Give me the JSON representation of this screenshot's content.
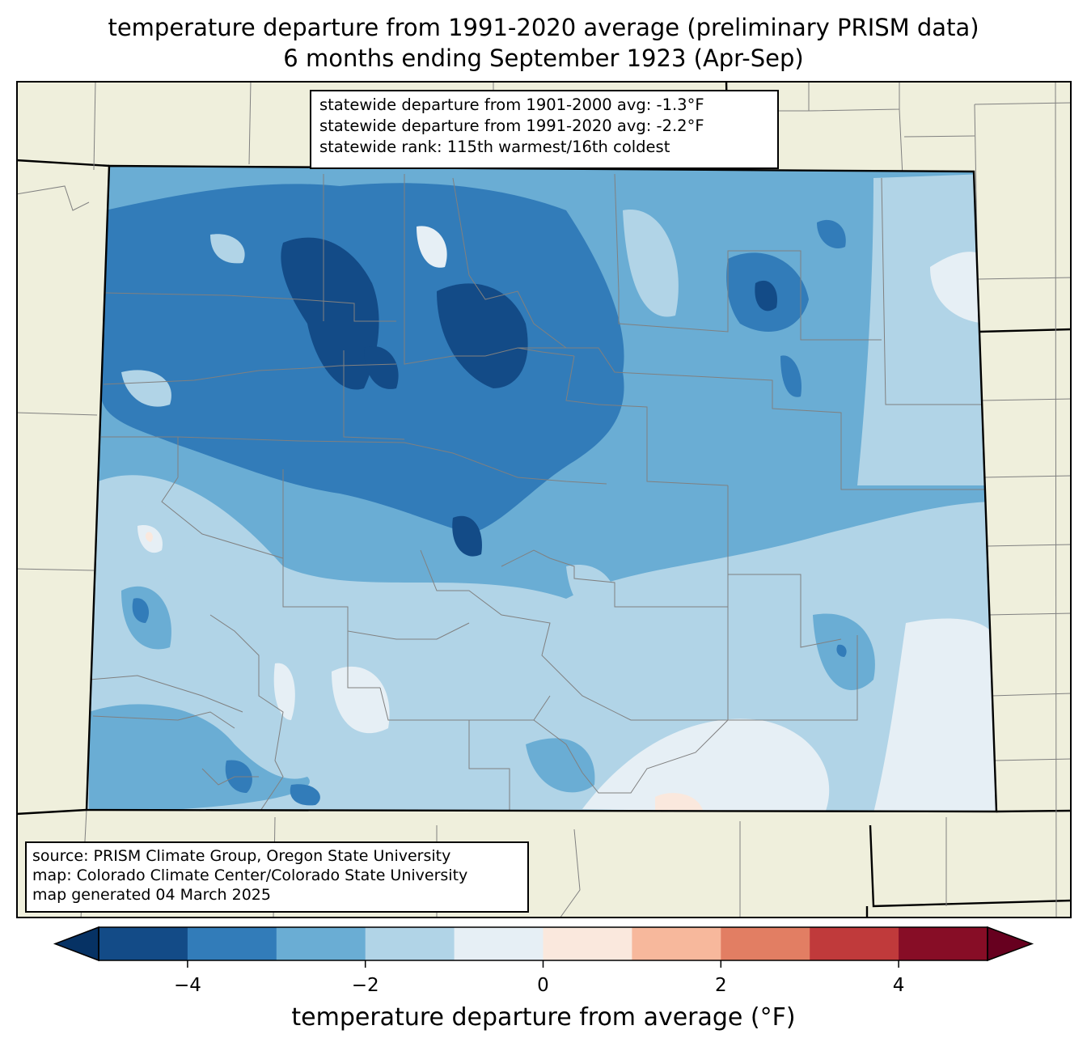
{
  "title": {
    "line1": "temperature departure from 1991-2020 average (preliminary PRISM data)",
    "line2": "6 months ending September 1923 (Apr-Sep)"
  },
  "stats": {
    "line1": "statewide departure from 1901-2000 avg: -1.3°F",
    "line2": "statewide departure from 1991-2020 avg: -2.2°F",
    "line3": "statewide rank: 115th warmest/16th coldest"
  },
  "source": {
    "line1": "source: PRISM Climate Group, Oregon State University",
    "line2": "map: Colorado Climate Center/Colorado State University",
    "line3": "map generated 04 March 2025"
  },
  "colorbar": {
    "label": "temperature departure from average (°F)",
    "range": [
      -5,
      5
    ],
    "bins": [
      {
        "from": -5,
        "to": -4,
        "color": "#134b87"
      },
      {
        "from": -4,
        "to": -3,
        "color": "#327cb9"
      },
      {
        "from": -3,
        "to": -2,
        "color": "#6aadd4"
      },
      {
        "from": -2,
        "to": -1,
        "color": "#b1d4e7"
      },
      {
        "from": -1,
        "to": 0,
        "color": "#e6eff5"
      },
      {
        "from": 0,
        "to": 1,
        "color": "#fae8dd"
      },
      {
        "from": 1,
        "to": 2,
        "color": "#f7b89c"
      },
      {
        "from": 2,
        "to": 3,
        "color": "#e27e63"
      },
      {
        "from": 3,
        "to": 4,
        "color": "#c03a3b"
      },
      {
        "from": 4,
        "to": 5,
        "color": "#870d26"
      }
    ],
    "under_color": "#063264",
    "over_color": "#67001f",
    "ticks": [
      {
        "value": -4,
        "label": "−4"
      },
      {
        "value": -2,
        "label": "−2"
      },
      {
        "value": 0,
        "label": "0"
      },
      {
        "value": 2,
        "label": "2"
      },
      {
        "value": 4,
        "label": "4"
      }
    ]
  },
  "map": {
    "land_color": "#efefdc",
    "border_color": "#000000",
    "county_color": "#808080"
  }
}
